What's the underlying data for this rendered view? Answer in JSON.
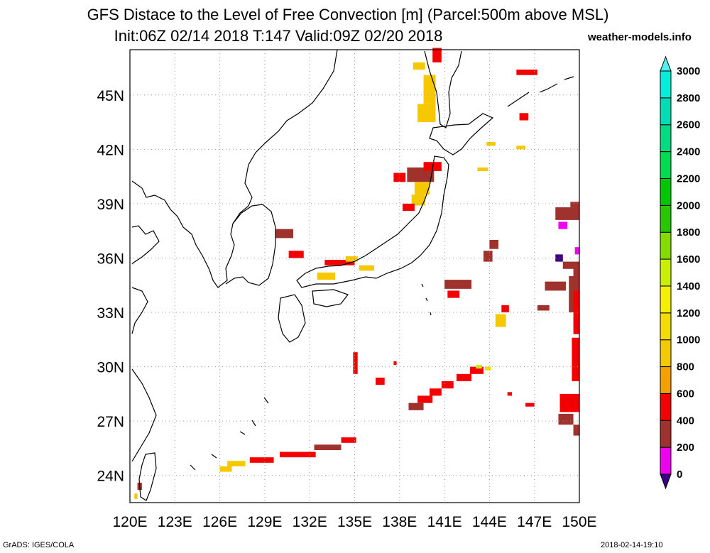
{
  "title": {
    "line1": "GFS Distace to the Level of Free Convection [m] (Parcel:500m above MSL)",
    "line2": "Init:06Z 02/14 2018 T:147 Valid:09Z 02/20 2018"
  },
  "site": "weather-models.info",
  "footer": {
    "left": "GrADS: IGES/COLA",
    "right": "2018-02-14-19:10"
  },
  "map": {
    "lat_labels": [
      {
        "lat": 45,
        "label": "45N"
      },
      {
        "lat": 42,
        "label": "42N"
      },
      {
        "lat": 39,
        "label": "39N"
      },
      {
        "lat": 36,
        "label": "36N"
      },
      {
        "lat": 33,
        "label": "33N"
      },
      {
        "lat": 30,
        "label": "30N"
      },
      {
        "lat": 27,
        "label": "27N"
      },
      {
        "lat": 24,
        "label": "24N"
      }
    ],
    "lon_labels": [
      {
        "lon": 120,
        "label": "120E"
      },
      {
        "lon": 123,
        "label": "123E"
      },
      {
        "lon": 126,
        "label": "126E"
      },
      {
        "lon": 129,
        "label": "129E"
      },
      {
        "lon": 132,
        "label": "132E"
      },
      {
        "lon": 135,
        "label": "135E"
      },
      {
        "lon": 138,
        "label": "138E"
      },
      {
        "lon": 141,
        "label": "141E"
      },
      {
        "lon": 144,
        "label": "144E"
      },
      {
        "lon": 147,
        "label": "147E"
      },
      {
        "lon": 150,
        "label": "150E"
      }
    ],
    "lon_range": [
      120,
      150
    ],
    "lat_range": [
      22.5,
      47.5
    ]
  },
  "colorbar": {
    "levels": [
      "0",
      "200",
      "400",
      "600",
      "800",
      "1000",
      "1200",
      "1400",
      "1600",
      "1800",
      "2000",
      "2200",
      "2400",
      "2600",
      "2800",
      "3000"
    ],
    "colors": [
      "#3c0082",
      "#f000f0",
      "#a0322d",
      "#f50000",
      "#f5a000",
      "#f5c800",
      "#f5dc00",
      "#f5f000",
      "#c8f000",
      "#82dc00",
      "#28c800",
      "#00c800",
      "#00dc50",
      "#00dc82",
      "#00dcb4",
      "#00f0dc",
      "#50f0f0"
    ]
  }
}
